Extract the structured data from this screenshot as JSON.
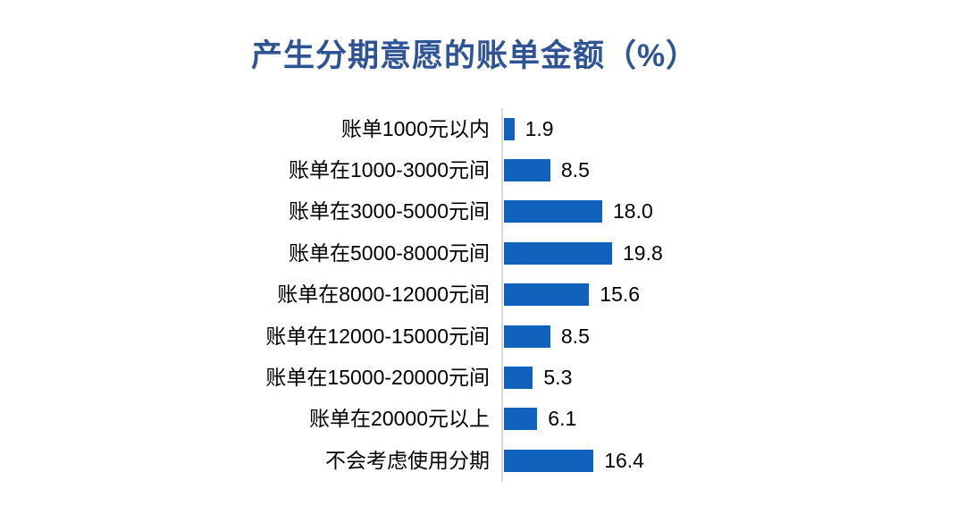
{
  "chart_data": {
    "type": "bar",
    "orientation": "horizontal",
    "title": "产生分期意愿的账单金额（%）",
    "categories": [
      "账单1000元以内",
      "账单在1000-3000元间",
      "账单在3000-5000元间",
      "账单在5000-8000元间",
      "账单在8000-12000元间",
      "账单在12000-15000元间",
      "账单在15000-20000元间",
      "账单在20000元以上",
      "不会考虑使用分期"
    ],
    "values": [
      1.9,
      8.5,
      18.0,
      19.8,
      15.6,
      8.5,
      5.3,
      6.1,
      16.4
    ],
    "value_labels": [
      "1.9",
      "8.5",
      "18.0",
      "19.8",
      "15.6",
      "8.5",
      "5.3",
      "6.1",
      "16.4"
    ],
    "xlabel": "",
    "ylabel": "",
    "xlim": [
      0,
      19.8
    ],
    "grid": false,
    "legend_position": "none",
    "data_labels": "outside-end",
    "colors": {
      "bar": "#1062BC",
      "title": "#2F5496",
      "axis_line": "#D9D9D9",
      "text": "#000000",
      "background": "#FFFFFF"
    }
  }
}
